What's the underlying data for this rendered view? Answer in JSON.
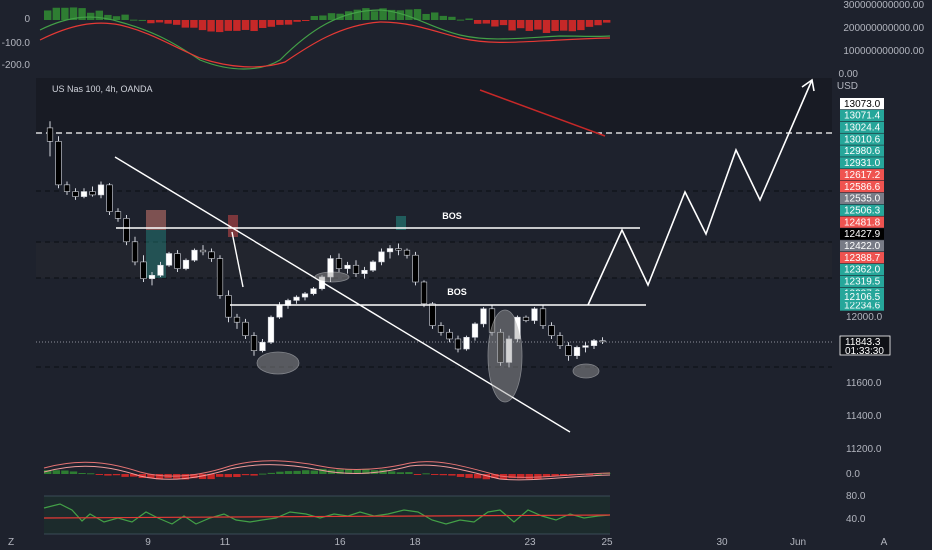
{
  "symbol_title": "US Nas 100, 4h, OANDA",
  "currency": "USD",
  "colors": {
    "background": "#1e222d",
    "up": "#26a69a",
    "down": "#ef5350",
    "candle_up": "#ffffff",
    "candle_down": "#000000"
  },
  "macd_top": {
    "scale_labels": [
      "0",
      "-100.0",
      "-200.0"
    ],
    "right_labels": [
      "300000000000.00",
      "200000000000.00",
      "100000000000.00",
      "0.00"
    ]
  },
  "chart_data": {
    "type": "candlestick",
    "ylim": [
      11300,
      13200
    ],
    "price_ticks": [
      "12200.0",
      "12000.0",
      "11800.0",
      "11600.0",
      "11400.0",
      "11200.0"
    ],
    "date_ticks": [
      "9",
      "11",
      "16",
      "18",
      "23",
      "25",
      "30",
      "Jun"
    ],
    "corner_label": "A",
    "left_corner_label": "Z",
    "annotations": [
      "BOS",
      "BOS"
    ],
    "current_price": "11843.3",
    "countdown": "01:33:30",
    "price_tags": [
      {
        "value": "13073.0",
        "style": "white"
      },
      {
        "value": "13071.4",
        "style": "teal"
      },
      {
        "value": "13024.4",
        "style": "teal"
      },
      {
        "value": "13010.6",
        "style": "teal"
      },
      {
        "value": "12980.6",
        "style": "teal"
      },
      {
        "value": "12931.0",
        "style": "teal"
      },
      {
        "value": "12617.2",
        "style": "red"
      },
      {
        "value": "12586.6",
        "style": "red"
      },
      {
        "value": "12535.0",
        "style": "gray"
      },
      {
        "value": "12506.3",
        "style": "teal"
      },
      {
        "value": "12481.8",
        "style": "red"
      },
      {
        "value": "12427.9",
        "style": "black"
      },
      {
        "value": "12422.0",
        "style": "gray"
      },
      {
        "value": "12388.7",
        "style": "red"
      },
      {
        "value": "12362.0",
        "style": "teal"
      },
      {
        "value": "12319.5",
        "style": "teal"
      },
      {
        "value": "12237.0",
        "style": "teal"
      },
      {
        "value": "12234.6",
        "style": "teal"
      },
      {
        "value": "12106.5",
        "style": "teal"
      }
    ],
    "candles": [
      [
        13120,
        13160,
        12950,
        13040
      ],
      [
        13040,
        13070,
        12760,
        12780
      ],
      [
        12780,
        12800,
        12720,
        12740
      ],
      [
        12740,
        12760,
        12690,
        12710
      ],
      [
        12710,
        12760,
        12700,
        12740
      ],
      [
        12740,
        12770,
        12710,
        12720
      ],
      [
        12720,
        12800,
        12700,
        12780
      ],
      [
        12780,
        12790,
        12600,
        12620
      ],
      [
        12620,
        12640,
        12560,
        12580
      ],
      [
        12580,
        12600,
        12420,
        12440
      ],
      [
        12440,
        12470,
        12300,
        12320
      ],
      [
        12320,
        12360,
        12200,
        12220
      ],
      [
        12220,
        12260,
        12180,
        12240
      ],
      [
        12240,
        12320,
        12230,
        12300
      ],
      [
        12300,
        12380,
        12290,
        12370
      ],
      [
        12370,
        12390,
        12260,
        12280
      ],
      [
        12280,
        12340,
        12270,
        12330
      ],
      [
        12330,
        12400,
        12320,
        12390
      ],
      [
        12390,
        12420,
        12360,
        12380
      ],
      [
        12380,
        12400,
        12320,
        12340
      ],
      [
        12340,
        12360,
        12100,
        12120
      ],
      [
        12120,
        12150,
        11960,
        11990
      ],
      [
        11990,
        12010,
        11920,
        11960
      ],
      [
        11960,
        11980,
        11860,
        11880
      ],
      [
        11880,
        11900,
        11760,
        11790
      ],
      [
        11790,
        11860,
        11780,
        11840
      ],
      [
        11840,
        12000,
        11830,
        11990
      ],
      [
        11990,
        12080,
        11980,
        12060
      ],
      [
        12060,
        12100,
        12040,
        12090
      ],
      [
        12090,
        12120,
        12070,
        12110
      ],
      [
        12110,
        12140,
        12090,
        12130
      ],
      [
        12130,
        12170,
        12120,
        12160
      ],
      [
        12160,
        12240,
        12150,
        12230
      ],
      [
        12230,
        12360,
        12200,
        12340
      ],
      [
        12340,
        12370,
        12260,
        12280
      ],
      [
        12280,
        12320,
        12250,
        12300
      ],
      [
        12300,
        12330,
        12230,
        12250
      ],
      [
        12250,
        12290,
        12220,
        12270
      ],
      [
        12270,
        12330,
        12260,
        12320
      ],
      [
        12320,
        12400,
        12300,
        12380
      ],
      [
        12380,
        12420,
        12340,
        12400
      ],
      [
        12400,
        12430,
        12360,
        12390
      ],
      [
        12390,
        12400,
        12340,
        12360
      ],
      [
        12360,
        12380,
        12180,
        12200
      ],
      [
        12200,
        12210,
        12050,
        12070
      ],
      [
        12070,
        12080,
        11920,
        11940
      ],
      [
        11940,
        11960,
        11880,
        11900
      ],
      [
        11900,
        11920,
        11840,
        11860
      ],
      [
        11860,
        11880,
        11780,
        11800
      ],
      [
        11800,
        11880,
        11790,
        11870
      ],
      [
        11870,
        11960,
        11850,
        11950
      ],
      [
        11950,
        12050,
        11930,
        12040
      ],
      [
        12040,
        12060,
        11880,
        11900
      ],
      [
        11900,
        11920,
        11700,
        11720
      ],
      [
        11720,
        11880,
        11690,
        11860
      ],
      [
        11860,
        12000,
        11840,
        11990
      ],
      [
        11990,
        12000,
        11960,
        11970
      ],
      [
        11970,
        12050,
        11950,
        12040
      ],
      [
        12040,
        12060,
        11920,
        11940
      ],
      [
        11940,
        11960,
        11860,
        11880
      ],
      [
        11880,
        11900,
        11800,
        11820
      ],
      [
        11820,
        11840,
        11730,
        11760
      ],
      [
        11760,
        11820,
        11740,
        11810
      ],
      [
        11810,
        11840,
        11780,
        11820
      ],
      [
        11820,
        11860,
        11800,
        11850
      ],
      [
        11850,
        11870,
        11830,
        11843
      ]
    ]
  },
  "macd_bottom": {
    "scale_labels": [
      "0.0"
    ]
  },
  "rsi": {
    "scale_labels": [
      "80.0",
      "40.0"
    ]
  }
}
